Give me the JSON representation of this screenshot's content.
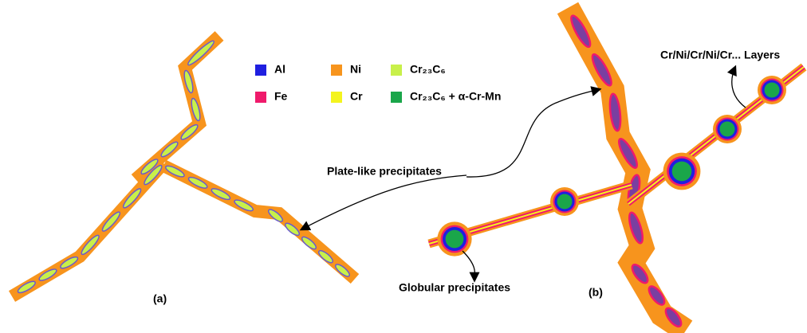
{
  "legend": [
    {
      "label": "Al",
      "color": "#1f1fe0"
    },
    {
      "label": "Ni",
      "color": "#f7941d"
    },
    {
      "label": "Cr₂₃C₆",
      "color": "#c8f04a"
    },
    {
      "label": "Fe",
      "color": "#ef1a6b"
    },
    {
      "label": "Cr",
      "color": "#f4f41e"
    },
    {
      "label": "Cr₂₃C₆ + α-Cr-Mn",
      "color": "#1aa64a"
    }
  ],
  "annotations": {
    "plate": "Plate-like precipitates",
    "layers": "Cr/Ni/Cr/Ni/Cr... Layers",
    "globular": "Globular precipitates"
  },
  "panels": {
    "a": "(a)",
    "b": "(b)"
  }
}
